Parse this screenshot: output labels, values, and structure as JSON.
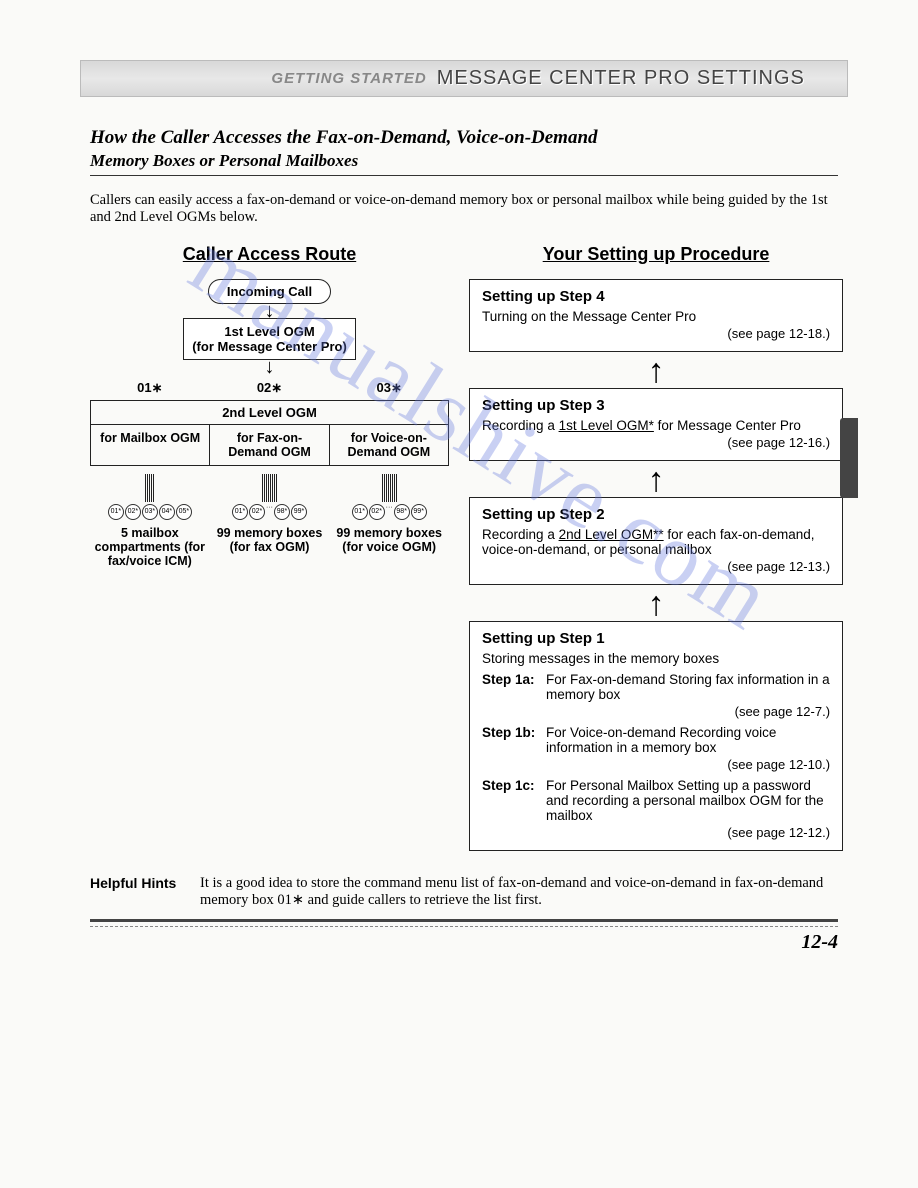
{
  "header": {
    "left": "GETTING STARTED",
    "right": "MESSAGE CENTER PRO SETTINGS"
  },
  "title": "How the Caller Accesses the Fax-on-Demand, Voice-on-Demand",
  "subtitle": "Memory Boxes or Personal Mailboxes",
  "intro": "Callers can easily access a fax-on-demand or voice-on-demand memory box or personal mailbox while being guided by the 1st and 2nd Level OGMs below.",
  "left_heading": "Caller Access Route",
  "right_heading": "Your Setting up Procedure",
  "flow": {
    "incoming": "Incoming Call",
    "level1_line1": "1st Level OGM",
    "level1_line2": "(for Message Center Pro)",
    "codes": [
      "01∗",
      "02∗",
      "03∗"
    ],
    "level2_header": "2nd Level OGM",
    "level2_cells": [
      "for Mailbox OGM",
      "for Fax-on-Demand OGM",
      "for Voice-on-Demand OGM"
    ],
    "chips_g1": [
      "01*",
      "02*",
      "03*",
      "04*",
      "05*"
    ],
    "chips_g2": [
      "01*",
      "02*",
      "98*",
      "99*"
    ],
    "chips_g3": [
      "01*",
      "02*",
      "98*",
      "99*"
    ],
    "bottom": [
      "5 mailbox compartments (for fax/voice ICM)",
      "99 memory boxes (for fax OGM)",
      "99 memory boxes (for voice OGM)"
    ]
  },
  "steps": {
    "s4": {
      "title": "Setting up Step 4",
      "body": "Turning on the Message Center Pro",
      "ref": "(see page 12-18.)"
    },
    "s3": {
      "title": "Setting up Step 3",
      "body_pre": "Recording a ",
      "body_link": "1st Level OGM*",
      "body_post": " for Message Center Pro",
      "ref": "(see page 12-16.)"
    },
    "s2": {
      "title": "Setting up Step 2",
      "body_pre": "Recording a ",
      "body_link": "2nd Level OGM**",
      "body_post": " for each fax-on-demand, voice-on-demand, or personal mailbox",
      "ref": "(see page 12-13.)"
    },
    "s1": {
      "title": "Setting up Step 1",
      "intro": "Storing messages in the memory boxes",
      "a_label": "Step 1a:",
      "a_body": "For Fax-on-demand Storing fax information in a memory box",
      "a_ref": "(see page 12-7.)",
      "b_label": "Step 1b:",
      "b_body": "For Voice-on-demand Recording voice information in a memory box",
      "b_ref": "(see page 12-10.)",
      "c_label": "Step 1c:",
      "c_body": "For Personal Mailbox Setting up a password and recording a personal mailbox OGM for the mailbox",
      "c_ref": "(see page 12-12.)"
    }
  },
  "hints": {
    "label": "Helpful Hints",
    "body": "It is a good idea to store the command menu list of fax-on-demand and voice-on-demand in fax-on-demand memory box 01∗ and guide callers to retrieve the list first."
  },
  "page_number": "12-4",
  "watermark": "manualshive.com"
}
